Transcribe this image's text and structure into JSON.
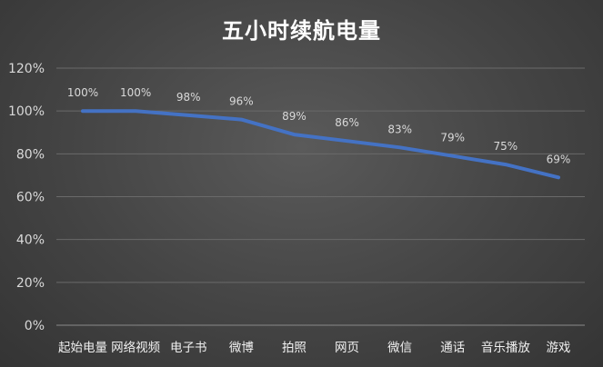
{
  "chart_data": {
    "type": "line",
    "title": "五小时续航电量",
    "categories": [
      "起始电量",
      "网络视频",
      "电子书",
      "微博",
      "拍照",
      "网页",
      "微信",
      "通话",
      "音乐播放",
      "游戏"
    ],
    "series": [
      {
        "values": [
          100,
          100,
          98,
          96,
          89,
          86,
          83,
          79,
          75,
          69
        ]
      }
    ],
    "data_labels": [
      "100%",
      "100%",
      "98%",
      "96%",
      "89%",
      "86%",
      "83%",
      "79%",
      "75%",
      "69%"
    ],
    "y_ticks": [
      0,
      20,
      40,
      60,
      80,
      100,
      120
    ],
    "y_tick_labels": [
      "0%",
      "20%",
      "40%",
      "60%",
      "80%",
      "100%",
      "120%"
    ],
    "ylim": [
      0,
      120
    ],
    "grid": true,
    "line_color": "#4472c4",
    "background_color": "#474747"
  }
}
